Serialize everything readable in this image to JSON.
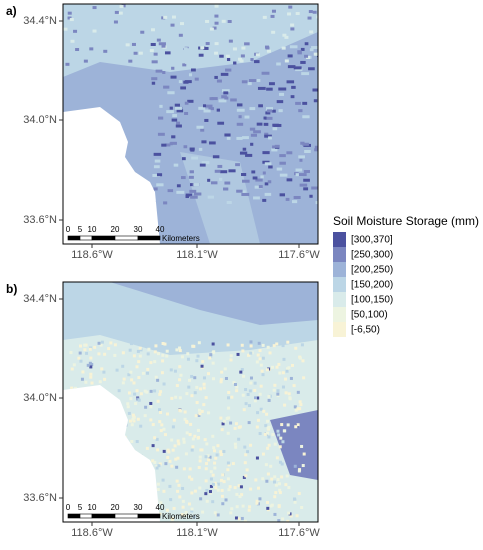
{
  "panels": [
    {
      "label": "a)",
      "y_labels": [
        "34.4°N",
        "34.0°N",
        "33.6°N"
      ],
      "x_labels": [
        "118.6°W",
        "118.1°W",
        "117.6°W"
      ],
      "scale_labels": [
        "0",
        "5",
        "10",
        "20",
        "30",
        "40"
      ],
      "scale_unit": "Kilometers"
    },
    {
      "label": "b)",
      "y_labels": [
        "34.4°N",
        "34.0°N",
        "33.6°N"
      ],
      "x_labels": [
        "118.6°W",
        "118.1°W",
        "117.6°W"
      ],
      "scale_labels": [
        "0",
        "5",
        "10",
        "20",
        "30",
        "40"
      ],
      "scale_unit": "Kilometers"
    }
  ],
  "legend": {
    "title": "Soil Moisture Storage (mm)",
    "items": [
      {
        "label": "[300,370]",
        "color": "#4b519f"
      },
      {
        "label": "[250,300)",
        "color": "#7b86c0"
      },
      {
        "label": "[200,250)",
        "color": "#9db3d8"
      },
      {
        "label": "[150,200)",
        "color": "#bcd6e6"
      },
      {
        "label": "[100,150)",
        "color": "#d9ebea"
      },
      {
        "label": "[50,100)",
        "color": "#edf4e1"
      },
      {
        "label": "[-6,50)",
        "color": "#f8f3d6"
      }
    ]
  }
}
